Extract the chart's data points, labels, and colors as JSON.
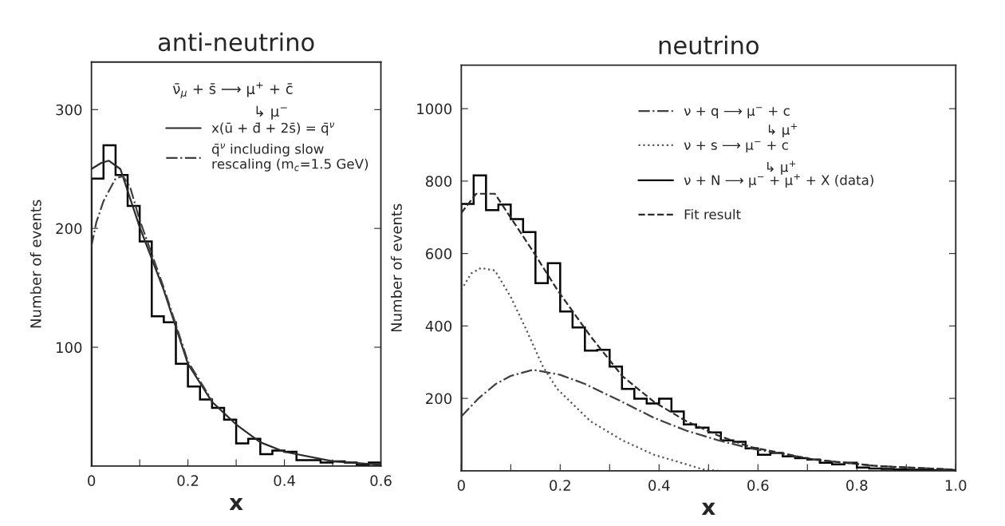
{
  "chart_data": [
    {
      "type": "histogram",
      "title": "anti-neutrino",
      "xlabel": "x",
      "ylabel": "Number of events",
      "xlim": [
        0,
        0.6
      ],
      "xticks": [
        0,
        {
          "value": 0.1,
          "label": null
        },
        0.2,
        {
          "value": 0.3,
          "label": null
        },
        0.4,
        {
          "value": 0.5,
          "label": null
        },
        0.6
      ],
      "ylim": [
        0,
        340
      ],
      "yticks": [
        100,
        200,
        300
      ],
      "grid": false,
      "legend": "top right",
      "annotations": [
        "ν̄$_{μ}$ + s̄ ⟶ μ$^{+}$ + c̄",
        "↳ μ$^{−}$"
      ],
      "series": [
        {
          "color": "#000000",
          "bins": [
            0,
            0.025,
            0.05,
            0.075,
            0.1,
            0.125,
            0.15,
            0.175,
            0.2,
            0.225,
            0.25,
            0.275,
            0.3,
            0.325,
            0.35,
            0.375,
            0.4,
            0.425,
            0.45,
            0.475,
            0.5,
            0.525,
            0.55,
            0.575,
            0.6
          ],
          "values": [
            242,
            270,
            245,
            219,
            189,
            126,
            121,
            86,
            67,
            56,
            49,
            39,
            19,
            23,
            10,
            13,
            12,
            5,
            5,
            3,
            4,
            3,
            1,
            3
          ]
        },
        {
          "type": "line",
          "name": "x(ū + d̄ + 2s̄) = q̄$^{ν}$",
          "color": "#2b2b2b",
          "line_style": "solid",
          "x": [
            0,
            0.02,
            0.036,
            0.06,
            0.1,
            0.15,
            0.2,
            0.25,
            0.3,
            0.35,
            0.4,
            0.5,
            0.6
          ],
          "values": [
            250,
            255,
            257,
            250,
            201,
            148,
            86,
            54,
            35,
            20,
            12,
            4,
            1
          ]
        },
        {
          "type": "line",
          "name": "q̄$^{ν}$ including slow\nrescaling (m$_{c}$=1.5 GeV)",
          "color": "#404040",
          "line_style": "dashdot",
          "x": [
            0,
            0.01,
            0.025,
            0.05,
            0.065,
            0.08,
            0.1,
            0.15,
            0.2,
            0.25
          ],
          "values": [
            185,
            205,
            223,
            242,
            244,
            235,
            207,
            150,
            88,
            55
          ]
        }
      ]
    },
    {
      "type": "histogram",
      "title": "neutrino",
      "xlabel": "x",
      "ylabel": "Number of events",
      "xlim": [
        0,
        1.0
      ],
      "xticks": [
        0,
        {
          "value": 0.1,
          "label": null
        },
        0.2,
        {
          "value": 0.3,
          "label": null
        },
        0.4,
        {
          "value": 0.5,
          "label": null
        },
        0.6,
        {
          "value": 0.7,
          "label": null
        },
        0.8,
        {
          "value": 0.9,
          "label": null
        },
        {
          "value": 1.0,
          "label": "1.0"
        }
      ],
      "ylim": [
        0,
        1120
      ],
      "yticks": [
        200,
        400,
        600,
        800,
        1000
      ],
      "grid": false,
      "legend": "top right",
      "annotations": [
        "↳ μ$^{+}$",
        "↳ μ$^{+}$"
      ],
      "series": [
        {
          "type": "line",
          "name": "ν + q ⟶ μ$^{−}$ + c",
          "color": "#404040",
          "line_style": "dashdot",
          "x": [
            0,
            0.035,
            0.07,
            0.1,
            0.145,
            0.2,
            0.25,
            0.326,
            0.39,
            0.455,
            0.52,
            0.584,
            0.713,
            0.842,
            1.0
          ],
          "values": [
            150,
            200,
            240,
            262,
            279,
            265,
            240,
            190,
            146,
            111,
            84,
            62,
            31,
            13,
            3
          ]
        },
        {
          "type": "line",
          "name": "ν + s ⟶ μ$^{−}$ + c",
          "color": "#555555",
          "line_style": "dotted",
          "x": [
            0,
            0.02,
            0.04,
            0.068,
            0.1,
            0.13,
            0.165,
            0.194,
            0.261,
            0.326,
            0.39,
            0.455,
            0.488,
            0.52
          ],
          "values": [
            500,
            545,
            560,
            553,
            480,
            394,
            288,
            226,
            137,
            84,
            44,
            18,
            4,
            0
          ]
        },
        {
          "name": "ν + N ⟶ μ$^{−}$ + μ$^{+}$ + X (data)",
          "color": "#000000",
          "bins": [
            0,
            0.025,
            0.05,
            0.075,
            0.1,
            0.125,
            0.15,
            0.175,
            0.2,
            0.225,
            0.25,
            0.275,
            0.3,
            0.325,
            0.35,
            0.375,
            0.4,
            0.425,
            0.45,
            0.475,
            0.5,
            0.525,
            0.55,
            0.575,
            0.6,
            0.625,
            0.65,
            0.675,
            0.7,
            0.725,
            0.75,
            0.775,
            0.8,
            0.825,
            0.85,
            0.875,
            0.9,
            0.925,
            0.95,
            0.975,
            1.0
          ],
          "values": [
            737,
            816,
            720,
            735,
            695,
            659,
            518,
            573,
            440,
            396,
            332,
            334,
            288,
            226,
            199,
            186,
            199,
            164,
            128,
            119,
            106,
            84,
            80,
            62,
            44,
            49,
            40,
            35,
            31,
            22,
            18,
            22,
            9,
            6,
            5,
            4,
            3,
            3,
            2,
            2
          ]
        },
        {
          "type": "line",
          "name": "Fit result",
          "color": "#2b2b2b",
          "line_style": "dashed",
          "x": [
            0,
            0.03,
            0.068,
            0.145,
            0.194,
            0.261,
            0.326,
            0.39,
            0.455,
            0.52,
            0.584,
            0.713,
            0.842,
            1.0
          ],
          "values": [
            712,
            765,
            765,
            606,
            500,
            372,
            261,
            190,
            137,
            97,
            66,
            31,
            13,
            3
          ]
        }
      ]
    }
  ]
}
